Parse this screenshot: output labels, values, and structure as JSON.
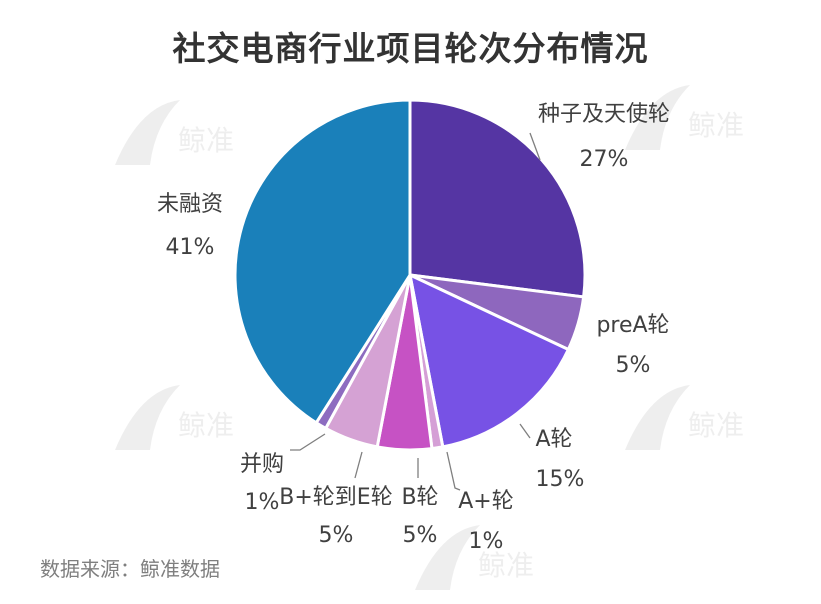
{
  "title": "社交电商行业项目轮次分布情况",
  "source": "数据来源：鲸准数据",
  "watermark_text": "鲸准",
  "chart_data": {
    "type": "pie",
    "title": "社交电商行业项目轮次分布情况",
    "start_angle_deg": 0,
    "direction": "clockwise",
    "slices": [
      {
        "label": "种子及天使轮",
        "value": 27,
        "pct_label": "27%",
        "color": "#5535A3"
      },
      {
        "label": "preA轮",
        "value": 5,
        "pct_label": "5%",
        "color": "#8E67BE"
      },
      {
        "label": "A轮",
        "value": 15,
        "pct_label": "15%",
        "color": "#7752E5"
      },
      {
        "label": "A+轮",
        "value": 1,
        "pct_label": "1%",
        "color": "#D59FD6"
      },
      {
        "label": "B轮",
        "value": 5,
        "pct_label": "5%",
        "color": "#C652C4"
      },
      {
        "label": "B+轮到E轮",
        "value": 5,
        "pct_label": "5%",
        "color": "#D5A2D4"
      },
      {
        "label": "并购",
        "value": 1,
        "pct_label": "1%",
        "color": "#8D6CC0"
      },
      {
        "label": "未融资",
        "value": 41,
        "pct_label": "41%",
        "color": "#1A80BA"
      }
    ]
  }
}
